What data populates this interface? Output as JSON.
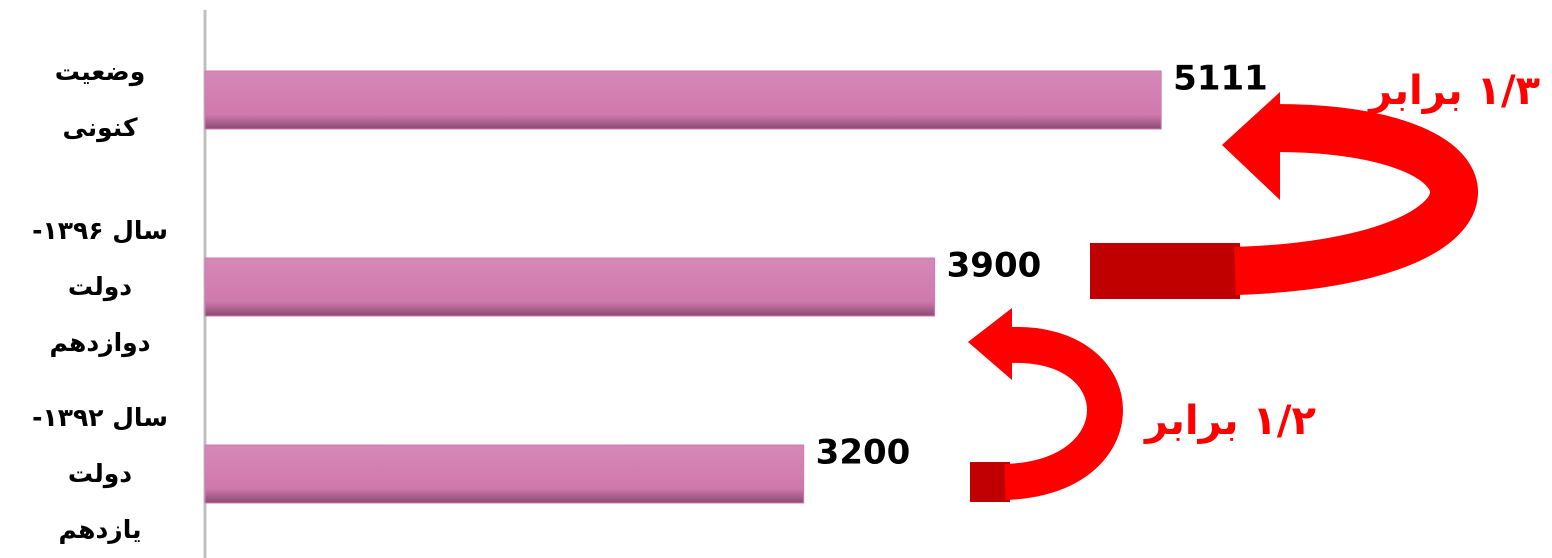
{
  "chart_data": {
    "type": "barh",
    "categories": [
      "وضعیت کنونی",
      "سال ۱۳۹۶- دولت دوازدهم",
      "سال ۱۳۹۲- دولت یازدهم"
    ],
    "values": [
      5111,
      3900,
      3200
    ],
    "color": "#d07aae",
    "xlim": [
      0,
      7200
    ],
    "annotations": [
      "۱/۳ برابر",
      "۱/۲ برابر"
    ]
  }
}
